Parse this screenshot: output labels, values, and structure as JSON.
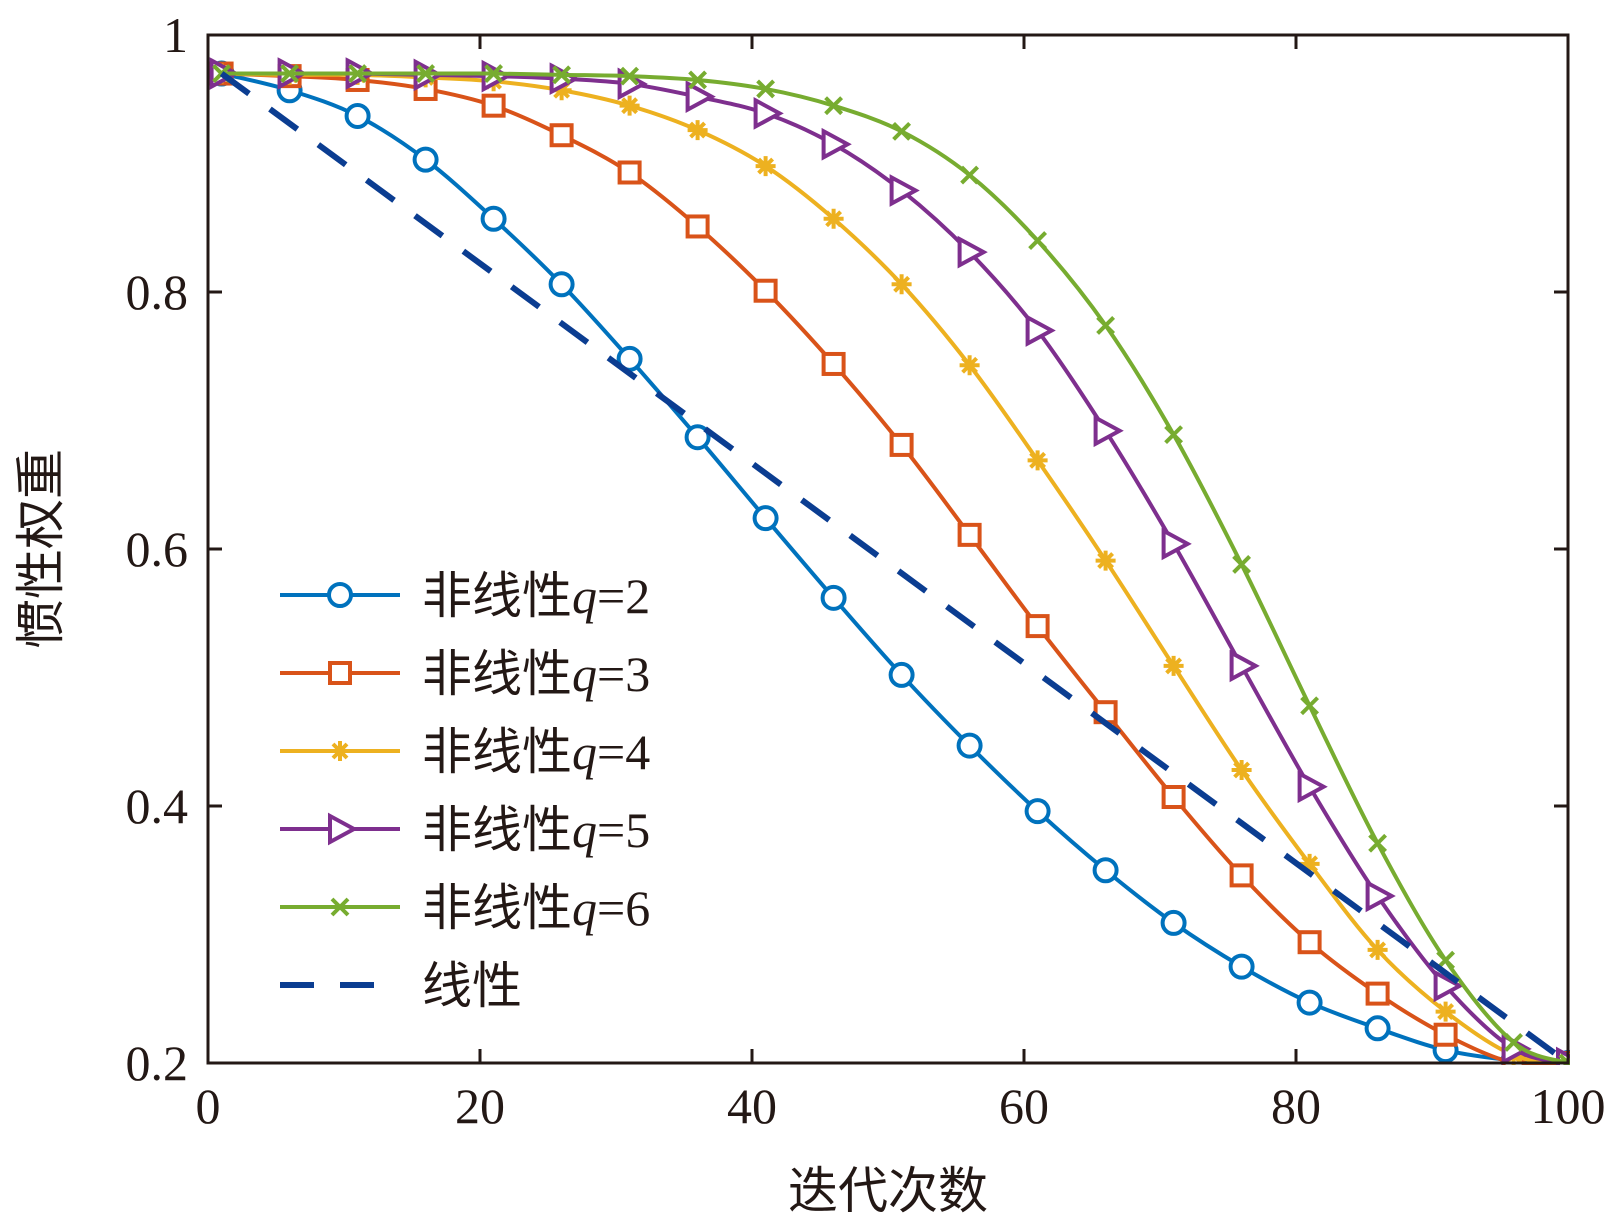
{
  "chart_data": {
    "type": "line",
    "title": "",
    "xlabel": "迭代次数",
    "ylabel": "惯性权重",
    "xlim": [
      0,
      100
    ],
    "ylim": [
      0.2,
      1.0
    ],
    "x_ticks": [
      0,
      20,
      40,
      60,
      80,
      100
    ],
    "y_ticks": [
      0.2,
      0.4,
      0.6,
      0.8,
      1.0
    ],
    "x_tick_labels": [
      "0",
      "20",
      "40",
      "60",
      "80",
      "100"
    ],
    "y_tick_labels": [
      "0.2",
      "0.4",
      "0.6",
      "0.8",
      "1"
    ],
    "grid": false,
    "legend_position": "bottom-left",
    "x": [
      1,
      6,
      11,
      16,
      21,
      26,
      31,
      36,
      41,
      46,
      51,
      56,
      61,
      66,
      71,
      76,
      81,
      86,
      91,
      96,
      100
    ],
    "series": [
      {
        "name": "非线性q=2",
        "name_parts": {
          "prefix": "非线性",
          "var": "q",
          "eq": "=2"
        },
        "color": "#0072bd",
        "marker": "circle",
        "dash": false,
        "values": [
          0.97,
          0.957,
          0.937,
          0.903,
          0.857,
          0.806,
          0.748,
          0.687,
          0.624,
          0.562,
          0.502,
          0.447,
          0.396,
          0.35,
          0.309,
          0.275,
          0.247,
          0.227,
          0.21,
          0.202,
          0.2
        ]
      },
      {
        "name": "非线性q=3",
        "name_parts": {
          "prefix": "非线性",
          "var": "q",
          "eq": "=3"
        },
        "color": "#d95319",
        "marker": "square",
        "dash": false,
        "values": [
          0.97,
          0.968,
          0.965,
          0.958,
          0.945,
          0.922,
          0.893,
          0.851,
          0.801,
          0.744,
          0.681,
          0.611,
          0.54,
          0.473,
          0.407,
          0.346,
          0.294,
          0.254,
          0.222,
          0.2,
          0.2
        ]
      },
      {
        "name": "非线性q=4",
        "name_parts": {
          "prefix": "非线性",
          "var": "q",
          "eq": "=4"
        },
        "color": "#edb120",
        "marker": "asterisk",
        "dash": false,
        "values": [
          0.97,
          0.969,
          0.969,
          0.967,
          0.964,
          0.957,
          0.945,
          0.926,
          0.898,
          0.857,
          0.806,
          0.743,
          0.669,
          0.591,
          0.509,
          0.428,
          0.355,
          0.288,
          0.24,
          0.206,
          0.2
        ]
      },
      {
        "name": "非线性q=5",
        "name_parts": {
          "prefix": "非线性",
          "var": "q",
          "eq": "=5"
        },
        "color": "#7e2f8e",
        "marker": "triangle-right",
        "dash": false,
        "values": [
          0.97,
          0.97,
          0.97,
          0.969,
          0.968,
          0.966,
          0.962,
          0.952,
          0.939,
          0.915,
          0.879,
          0.831,
          0.77,
          0.692,
          0.604,
          0.509,
          0.415,
          0.33,
          0.26,
          0.211,
          0.2
        ]
      },
      {
        "name": "非线性q=6",
        "name_parts": {
          "prefix": "非线性",
          "var": "q",
          "eq": "=6"
        },
        "color": "#77ac30",
        "marker": "x",
        "dash": false,
        "values": [
          0.97,
          0.97,
          0.97,
          0.97,
          0.97,
          0.969,
          0.968,
          0.965,
          0.958,
          0.945,
          0.925,
          0.891,
          0.84,
          0.774,
          0.689,
          0.588,
          0.478,
          0.371,
          0.28,
          0.216,
          0.2
        ]
      },
      {
        "name": "线性",
        "name_parts": {
          "prefix": "线性",
          "var": "",
          "eq": ""
        },
        "color": "#0b3d91",
        "marker": "none",
        "dash": true,
        "x": [
          1,
          100
        ],
        "values": [
          0.97,
          0.2
        ]
      }
    ]
  }
}
